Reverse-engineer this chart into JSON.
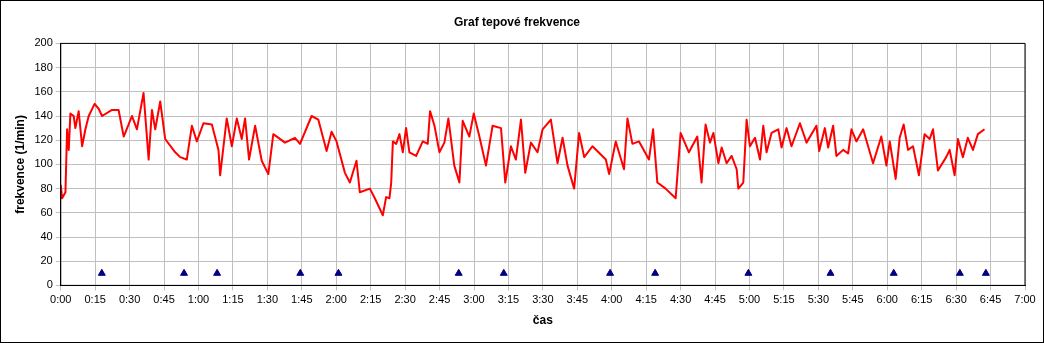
{
  "chart_data": {
    "type": "line",
    "title": "Graf tepové frekvence",
    "xlabel": "čas",
    "ylabel": "frekvence (1/min)",
    "xlim": [
      0,
      7
    ],
    "ylim": [
      0,
      200
    ],
    "yticks": [
      0,
      20,
      40,
      60,
      80,
      100,
      120,
      140,
      160,
      180,
      200
    ],
    "xticks": [
      {
        "value": 0,
        "label": "0:00"
      },
      {
        "value": 0.25,
        "label": "0:15"
      },
      {
        "value": 0.5,
        "label": "0:30"
      },
      {
        "value": 0.75,
        "label": "0:45"
      },
      {
        "value": 1,
        "label": "1:00"
      },
      {
        "value": 1.25,
        "label": "1:15"
      },
      {
        "value": 1.5,
        "label": "1:30"
      },
      {
        "value": 1.75,
        "label": "1:45"
      },
      {
        "value": 2,
        "label": "2:00"
      },
      {
        "value": 2.25,
        "label": "2:15"
      },
      {
        "value": 2.5,
        "label": "2:30"
      },
      {
        "value": 2.75,
        "label": "2:45"
      },
      {
        "value": 3,
        "label": "3:00"
      },
      {
        "value": 3.25,
        "label": "3:15"
      },
      {
        "value": 3.5,
        "label": "3:30"
      },
      {
        "value": 3.75,
        "label": "3:45"
      },
      {
        "value": 4,
        "label": "4:00"
      },
      {
        "value": 4.25,
        "label": "4:15"
      },
      {
        "value": 4.5,
        "label": "4:30"
      },
      {
        "value": 4.75,
        "label": "4:45"
      },
      {
        "value": 5,
        "label": "5:00"
      },
      {
        "value": 5.25,
        "label": "5:15"
      },
      {
        "value": 5.5,
        "label": "5:30"
      },
      {
        "value": 5.75,
        "label": "5:45"
      },
      {
        "value": 6,
        "label": "6:00"
      },
      {
        "value": 6.25,
        "label": "6:15"
      },
      {
        "value": 6.5,
        "label": "6:30"
      },
      {
        "value": 6.75,
        "label": "6:45"
      },
      {
        "value": 7,
        "label": "7:00"
      }
    ],
    "grid": true,
    "legend": false,
    "series": [
      {
        "type": "line",
        "color": "#ff0000",
        "marker": "none",
        "line_style": "solid",
        "x": [
          0,
          0.01,
          0.034,
          0.046,
          0.058,
          0.07,
          0.094,
          0.106,
          0.13,
          0.155,
          0.179,
          0.203,
          0.246,
          0.275,
          0.3,
          0.372,
          0.42,
          0.457,
          0.517,
          0.553,
          0.601,
          0.638,
          0.662,
          0.686,
          0.722,
          0.758,
          0.831,
          0.867,
          0.915,
          0.952,
          0.988,
          1.036,
          1.097,
          1.145,
          1.157,
          1.205,
          1.242,
          1.278,
          1.314,
          1.338,
          1.367,
          1.411,
          1.459,
          1.507,
          1.543,
          1.628,
          1.7,
          1.737,
          1.821,
          1.87,
          1.93,
          1.966,
          2.002,
          2.063,
          2.099,
          2.147,
          2.171,
          2.244,
          2.28,
          2.338,
          2.362,
          2.386,
          2.399,
          2.411,
          2.435,
          2.459,
          2.483,
          2.507,
          2.531,
          2.58,
          2.628,
          2.664,
          2.681,
          2.713,
          2.749,
          2.785,
          2.814,
          2.857,
          2.894,
          2.918,
          2.966,
          2.998,
          3.039,
          3.087,
          3.135,
          3.196,
          3.227,
          3.268,
          3.304,
          3.341,
          3.372,
          3.413,
          3.461,
          3.498,
          3.558,
          3.606,
          3.643,
          3.679,
          3.727,
          3.763,
          3.8,
          3.86,
          3.957,
          3.981,
          4.029,
          4.089,
          4.114,
          4.15,
          4.198,
          4.27,
          4.3,
          4.331,
          4.391,
          4.464,
          4.5,
          4.56,
          4.621,
          4.652,
          4.681,
          4.713,
          4.738,
          4.774,
          4.798,
          4.834,
          4.87,
          4.907,
          4.919,
          4.955,
          4.979,
          5.003,
          5.04,
          5.076,
          5.1,
          5.124,
          5.16,
          5.209,
          5.233,
          5.269,
          5.305,
          5.366,
          5.414,
          5.486,
          5.506,
          5.547,
          5.571,
          5.607,
          5.631,
          5.68,
          5.716,
          5.74,
          5.776,
          5.825,
          5.897,
          5.957,
          5.994,
          6.018,
          6.061,
          6.09,
          6.119,
          6.151,
          6.187,
          6.23,
          6.271,
          6.308,
          6.332,
          6.368,
          6.428,
          6.453,
          6.489,
          6.513,
          6.549,
          6.585,
          6.622,
          6.658,
          6.706
        ],
        "values": [
          83,
          72,
          77,
          129,
          112,
          142,
          140,
          130,
          144,
          115,
          129,
          140,
          150,
          146,
          140,
          145,
          145,
          123,
          140,
          129,
          159,
          104,
          145,
          129,
          152,
          121,
          110,
          106,
          104,
          132,
          119,
          134,
          133,
          112,
          91,
          138,
          115,
          138,
          121,
          138,
          104,
          132,
          103,
          92,
          125,
          118,
          122,
          117,
          140,
          137,
          111,
          127,
          119,
          93,
          85,
          103,
          77,
          80,
          72,
          58,
          73,
          72,
          85,
          119,
          117,
          125,
          110,
          130,
          110,
          107,
          119,
          117,
          144,
          132,
          110,
          118,
          138,
          99,
          85,
          136,
          123,
          142,
          123,
          99,
          132,
          130,
          85,
          115,
          104,
          137,
          93,
          118,
          110,
          129,
          137,
          101,
          122,
          99,
          80,
          126,
          106,
          115,
          104,
          92,
          119,
          96,
          138,
          117,
          119,
          104,
          129,
          85,
          80,
          72,
          126,
          110,
          123,
          85,
          133,
          118,
          126,
          101,
          114,
          101,
          107,
          96,
          80,
          85,
          137,
          115,
          122,
          104,
          132,
          110,
          126,
          129,
          114,
          130,
          115,
          134,
          118,
          132,
          111,
          130,
          114,
          132,
          107,
          112,
          109,
          129,
          119,
          129,
          101,
          123,
          99,
          119,
          88,
          122,
          133,
          112,
          115,
          91,
          125,
          121,
          129,
          95,
          106,
          112,
          91,
          121,
          106,
          122,
          112,
          125,
          129
        ]
      },
      {
        "type": "scatter",
        "color": "#000080",
        "marker": "triangle",
        "x": [
          0.298,
          0.895,
          1.135,
          1.739,
          2.016,
          2.889,
          3.216,
          3.988,
          4.315,
          4.992,
          5.588,
          6.047,
          6.527,
          6.716
        ],
        "values": [
          10,
          10,
          10,
          10,
          10,
          10,
          10,
          10,
          10,
          10,
          10,
          10,
          10,
          10
        ]
      }
    ]
  }
}
